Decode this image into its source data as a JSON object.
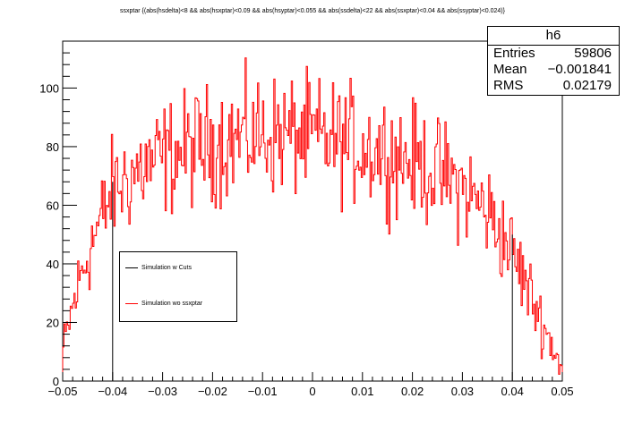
{
  "title": "ssxptar {(abs(hsdelta)<8 && abs(hsxptar)<0.09 && abs(hsyptar)<0.055 && abs(ssdelta)<22 && abs(ssxptar)<0.04 && abs(ssyptar)<0.024)}",
  "stats": {
    "name": "h6",
    "rows": [
      {
        "label": "Entries",
        "value": "59806"
      },
      {
        "label": "Mean",
        "value": "−0.001841"
      },
      {
        "label": "RMS",
        "value": "0.02179"
      }
    ]
  },
  "legend": [
    {
      "label": "Simulation w Cuts",
      "color": "#000000"
    },
    {
      "label": "Simulation wo ssxptar",
      "color": "#ff0000"
    }
  ],
  "chart_data": {
    "type": "line",
    "title": "ssxptar {(abs(hsdelta)<8 && abs(hsxptar)<0.09 && abs(hsyptar)<0.055 && abs(ssdelta)<22 && abs(ssxptar)<0.04 && abs(ssyptar)<0.024)}",
    "xlabel": "",
    "ylabel": "",
    "xlim": [
      -0.05,
      0.05
    ],
    "ylim": [
      0,
      116
    ],
    "xticks": [
      "−0.05",
      "−0.04",
      "−0.03",
      "−0.02",
      "−0.01",
      "0",
      "0.01",
      "0.02",
      "0.03",
      "0.04",
      "0.05"
    ],
    "yticks": [
      0,
      20,
      40,
      60,
      80,
      100
    ],
    "grid": false,
    "legend_position": "lower-left",
    "series": [
      {
        "name": "Simulation w Cuts",
        "color": "#000000",
        "style": "step",
        "x_edges": [
          -0.04,
          0.04
        ],
        "y_outside": 0,
        "profile": {
          "x": [
            -0.04,
            -0.035,
            -0.03,
            -0.025,
            -0.02,
            -0.015,
            -0.01,
            -0.005,
            0,
            0.005,
            0.01,
            0.015,
            0.02,
            0.025,
            0.03,
            0.035,
            0.04
          ],
          "y": [
            68,
            72,
            76,
            79,
            81,
            83,
            84,
            84,
            83,
            82,
            80,
            78,
            75,
            71,
            66,
            58,
            50
          ]
        }
      },
      {
        "name": "Simulation wo ssxptar",
        "color": "#ff0000",
        "style": "step",
        "profile": {
          "x": [
            -0.05,
            -0.048,
            -0.046,
            -0.044,
            -0.042,
            -0.04,
            -0.035,
            -0.03,
            -0.025,
            -0.02,
            -0.015,
            -0.01,
            -0.005,
            0,
            0.005,
            0.01,
            0.015,
            0.02,
            0.025,
            0.03,
            0.035,
            0.04,
            0.042,
            0.044,
            0.046,
            0.048,
            0.05
          ],
          "y": [
            10,
            25,
            38,
            48,
            56,
            65,
            72,
            76,
            79,
            81,
            83,
            84,
            84,
            83,
            82,
            80,
            78,
            75,
            71,
            66,
            58,
            44,
            36,
            28,
            20,
            12,
            4
          ]
        }
      }
    ]
  }
}
